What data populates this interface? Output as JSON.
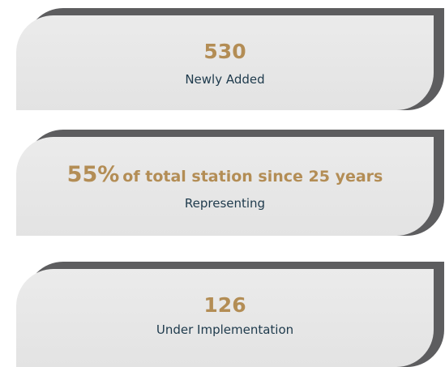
{
  "cards": [
    {
      "value": "530",
      "label": "Newly Added"
    },
    {
      "value": "55%",
      "suffix": "of total station since 25 years",
      "label": "Representing"
    },
    {
      "value": "126",
      "label": "Under Implementation"
    }
  ]
}
